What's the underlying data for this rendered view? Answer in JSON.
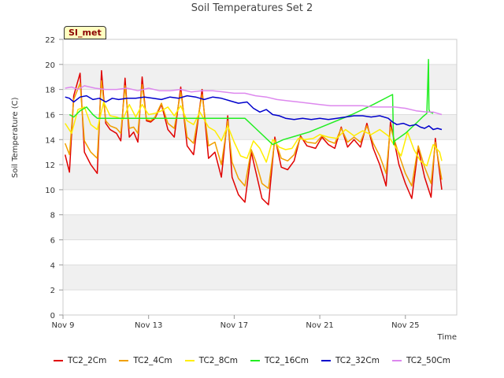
{
  "title": "Soil Temperatures Set 2",
  "badge": "SI_met",
  "chart_data": {
    "type": "line",
    "title": "Soil Temperatures Set 2",
    "xlabel": "Time",
    "ylabel": "Soil Temperature (C)",
    "xlim": [
      9.0,
      27.4
    ],
    "ylim": [
      0,
      22
    ],
    "x_ticks": [
      9,
      13,
      17,
      21,
      25
    ],
    "x_tick_labels": [
      "Nov 9",
      "Nov 13",
      "Nov 17",
      "Nov 21",
      "Nov 25"
    ],
    "y_ticks": [
      0,
      2,
      4,
      6,
      8,
      10,
      12,
      14,
      16,
      18,
      20,
      22
    ],
    "legend_position": "bottom",
    "series": [
      {
        "name": "TC2_2Cm",
        "color": "#e00000",
        "x": [
          9.1,
          9.3,
          9.5,
          9.8,
          10.0,
          10.3,
          10.6,
          10.8,
          11.0,
          11.2,
          11.5,
          11.7,
          11.9,
          12.1,
          12.3,
          12.5,
          12.7,
          12.9,
          13.1,
          13.3,
          13.6,
          13.9,
          14.2,
          14.5,
          14.8,
          15.1,
          15.5,
          15.8,
          16.1,
          16.4,
          16.7,
          16.9,
          17.2,
          17.5,
          17.8,
          18.0,
          18.3,
          18.6,
          18.9,
          19.2,
          19.5,
          19.8,
          20.1,
          20.4,
          20.8,
          21.1,
          21.4,
          21.7,
          22.0,
          22.3,
          22.6,
          22.9,
          23.2,
          23.5,
          23.8,
          24.1,
          24.3,
          24.7,
          25.0,
          25.3,
          25.6,
          25.9,
          26.2,
          26.4,
          26.7
        ],
        "values": [
          12.8,
          11.4,
          17.5,
          19.3,
          13.0,
          12.0,
          11.3,
          19.5,
          15.3,
          14.8,
          14.5,
          13.9,
          18.9,
          14.2,
          14.6,
          13.8,
          19.0,
          15.5,
          15.4,
          15.7,
          16.8,
          14.8,
          14.2,
          18.2,
          13.5,
          12.8,
          18.0,
          12.5,
          13.0,
          11.0,
          15.9,
          11.0,
          9.6,
          9.0,
          13.0,
          11.5,
          9.3,
          8.8,
          14.2,
          11.8,
          11.6,
          12.3,
          14.3,
          13.5,
          13.3,
          14.2,
          13.6,
          13.3,
          15.0,
          13.4,
          14.0,
          13.4,
          15.3,
          13.3,
          12.0,
          10.3,
          15.4,
          12.0,
          10.5,
          9.3,
          13.3,
          11.0,
          9.4,
          14.1,
          10.0
        ]
      },
      {
        "name": "TC2_4Cm",
        "color": "#f0a000",
        "x": [
          9.1,
          9.3,
          9.5,
          9.8,
          10.0,
          10.3,
          10.6,
          10.8,
          11.0,
          11.2,
          11.5,
          11.7,
          11.9,
          12.1,
          12.3,
          12.5,
          12.7,
          12.9,
          13.1,
          13.3,
          13.6,
          13.9,
          14.2,
          14.5,
          14.8,
          15.1,
          15.5,
          15.8,
          16.1,
          16.4,
          16.7,
          16.9,
          17.2,
          17.5,
          17.8,
          18.0,
          18.3,
          18.6,
          18.9,
          19.2,
          19.5,
          19.8,
          20.1,
          20.4,
          20.8,
          21.1,
          21.4,
          21.7,
          22.0,
          22.3,
          22.6,
          22.9,
          23.2,
          23.5,
          23.8,
          24.1,
          24.3,
          24.7,
          25.0,
          25.3,
          25.6,
          25.9,
          26.2,
          26.4,
          26.7
        ],
        "values": [
          13.7,
          12.8,
          17.2,
          18.5,
          13.9,
          13.0,
          12.5,
          18.7,
          15.5,
          15.1,
          14.9,
          14.5,
          18.3,
          14.9,
          15.0,
          14.5,
          18.4,
          15.6,
          15.5,
          15.8,
          16.9,
          15.3,
          14.9,
          17.8,
          14.2,
          13.7,
          17.6,
          13.5,
          13.8,
          12.0,
          15.5,
          12.2,
          10.9,
          10.3,
          13.2,
          12.3,
          10.5,
          10.1,
          14.0,
          12.5,
          12.3,
          12.8,
          14.2,
          13.8,
          13.7,
          14.3,
          13.9,
          13.7,
          14.9,
          13.8,
          14.2,
          13.8,
          15.1,
          13.7,
          12.7,
          11.3,
          15.0,
          12.8,
          11.3,
          10.3,
          13.5,
          11.8,
          10.5,
          13.8,
          10.8
        ]
      },
      {
        "name": "TC2_8Cm",
        "color": "#ffee00",
        "x": [
          9.1,
          9.4,
          9.7,
          10.0,
          10.3,
          10.6,
          10.9,
          11.2,
          11.5,
          11.8,
          12.1,
          12.4,
          12.7,
          13.0,
          13.3,
          13.6,
          13.9,
          14.2,
          14.5,
          14.8,
          15.1,
          15.4,
          15.8,
          16.1,
          16.4,
          16.7,
          17.0,
          17.3,
          17.6,
          17.9,
          18.2,
          18.5,
          18.8,
          19.1,
          19.4,
          19.7,
          20.0,
          20.3,
          20.7,
          21.0,
          21.4,
          21.8,
          22.2,
          22.6,
          23.0,
          23.4,
          23.8,
          24.2,
          24.5,
          24.8,
          25.1,
          25.4,
          25.7,
          26.0,
          26.3,
          26.6,
          26.7
        ],
        "values": [
          15.3,
          14.5,
          16.4,
          16.6,
          15.2,
          14.8,
          17.0,
          15.9,
          15.8,
          15.6,
          16.8,
          15.8,
          16.8,
          16.0,
          16.1,
          16.3,
          16.6,
          15.9,
          16.7,
          15.5,
          15.2,
          16.2,
          15.0,
          14.7,
          13.9,
          15.1,
          13.8,
          12.7,
          12.5,
          13.9,
          13.3,
          12.2,
          14.0,
          13.4,
          13.2,
          13.3,
          14.1,
          14.0,
          14.1,
          14.4,
          14.2,
          14.1,
          14.8,
          14.3,
          14.7,
          14.4,
          14.8,
          14.3,
          13.5,
          12.7,
          14.6,
          13.2,
          12.3,
          11.9,
          13.6,
          13.0,
          12.3
        ]
      },
      {
        "name": "TC2_16Cm",
        "color": "#22ee22",
        "x": [
          9.3,
          9.5,
          9.8,
          10.1,
          10.4,
          10.6,
          12.0,
          13.0,
          14.0,
          15.0,
          16.0,
          17.0,
          17.5,
          18.0,
          18.8,
          19.3,
          20.5,
          21.5,
          22.5,
          23.5,
          24.4,
          24.45,
          24.5,
          25.0,
          25.5,
          25.8,
          26.0,
          26.08,
          26.1,
          26.15,
          26.3
        ],
        "values": [
          16.0,
          15.8,
          16.3,
          16.6,
          16.0,
          15.7,
          15.7,
          15.7,
          15.7,
          15.7,
          15.7,
          15.7,
          15.7,
          14.9,
          13.6,
          14.0,
          14.6,
          15.3,
          16.0,
          16.8,
          17.6,
          13.6,
          13.9,
          14.5,
          15.3,
          15.8,
          16.1,
          20.4,
          16.4,
          16.2,
          16.1
        ]
      },
      {
        "name": "TC2_32Cm",
        "color": "#0000cc",
        "x": [
          9.1,
          9.3,
          9.5,
          9.8,
          10.1,
          10.4,
          10.7,
          11.0,
          11.3,
          11.6,
          12.0,
          12.4,
          12.8,
          13.2,
          13.6,
          14.0,
          14.4,
          14.8,
          15.2,
          15.6,
          16.0,
          16.4,
          16.8,
          17.2,
          17.6,
          17.9,
          18.2,
          18.5,
          18.8,
          19.1,
          19.4,
          19.8,
          20.2,
          20.6,
          21.0,
          21.4,
          21.8,
          22.2,
          22.6,
          23.0,
          23.4,
          23.8,
          24.2,
          24.4,
          24.6,
          24.9,
          25.2,
          25.5,
          25.7,
          25.9,
          26.1,
          26.3,
          26.5,
          26.7
        ],
        "values": [
          17.4,
          17.3,
          17.0,
          17.4,
          17.5,
          17.2,
          17.3,
          17.0,
          17.3,
          17.2,
          17.3,
          17.3,
          17.4,
          17.3,
          17.2,
          17.4,
          17.3,
          17.5,
          17.4,
          17.2,
          17.4,
          17.3,
          17.1,
          16.9,
          17.0,
          16.5,
          16.2,
          16.4,
          16.0,
          15.9,
          15.7,
          15.6,
          15.7,
          15.6,
          15.7,
          15.6,
          15.7,
          15.8,
          15.9,
          15.9,
          15.8,
          15.9,
          15.7,
          15.4,
          15.2,
          15.3,
          15.1,
          15.2,
          15.0,
          14.9,
          15.1,
          14.8,
          14.9,
          14.8
        ]
      },
      {
        "name": "TC2_50Cm",
        "color": "#dd88ee",
        "x": [
          9.1,
          9.4,
          9.7,
          10.0,
          10.5,
          11.0,
          11.5,
          12.0,
          12.5,
          13.0,
          13.5,
          14.0,
          14.5,
          15.0,
          15.5,
          16.0,
          16.5,
          17.0,
          17.5,
          18.0,
          18.5,
          19.0,
          19.5,
          20.0,
          20.5,
          21.0,
          21.5,
          22.0,
          22.5,
          23.0,
          23.5,
          24.0,
          24.5,
          25.0,
          25.5,
          26.0,
          26.3,
          26.7
        ],
        "values": [
          18.1,
          18.2,
          18.0,
          18.3,
          18.1,
          18.0,
          18.0,
          18.1,
          17.9,
          18.1,
          17.9,
          17.9,
          18.0,
          17.8,
          17.9,
          17.9,
          17.8,
          17.7,
          17.7,
          17.5,
          17.4,
          17.2,
          17.1,
          17.0,
          16.9,
          16.8,
          16.7,
          16.7,
          16.7,
          16.7,
          16.6,
          16.6,
          16.6,
          16.5,
          16.3,
          16.2,
          16.2,
          16.0
        ]
      }
    ]
  }
}
